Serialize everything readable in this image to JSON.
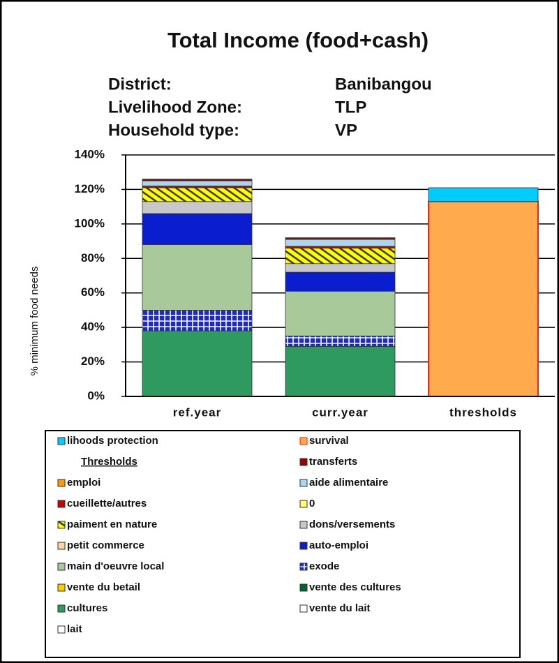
{
  "chart_data": {
    "type": "stacked_bar",
    "title": "Total Income (food+cash)",
    "info": [
      {
        "label": "District:",
        "value": "Banibangou"
      },
      {
        "label": "Livelihood Zone:",
        "value": "TLP"
      },
      {
        "label": "Household type:",
        "value": "VP"
      }
    ],
    "y_label": "% minimum food needs",
    "categories": [
      "ref.year",
      "curr.year",
      "thresholds"
    ],
    "ylim": [
      0,
      140
    ],
    "yticks": [
      {
        "value": 0,
        "label": "0%"
      },
      {
        "value": 20,
        "label": "20%"
      },
      {
        "value": 40,
        "label": "40%"
      },
      {
        "value": 60,
        "label": "60%"
      },
      {
        "value": 80,
        "label": "80%"
      },
      {
        "value": 100,
        "label": "100%"
      },
      {
        "value": 120,
        "label": "120%"
      },
      {
        "value": 140,
        "label": "140%"
      }
    ],
    "grid": true,
    "series": [
      {
        "name": "lait",
        "color": "#ffffff",
        "values": [
          0,
          0,
          0
        ]
      },
      {
        "name": "vente du lait",
        "color": "#ffffff",
        "values": [
          0,
          0,
          0
        ]
      },
      {
        "name": "cultures",
        "color": "#2e9a5f",
        "values": [
          38,
          29,
          0
        ]
      },
      {
        "name": "vente des cultures",
        "color": "#006633",
        "values": [
          0,
          0,
          0
        ]
      },
      {
        "name": "vente du betail",
        "color": "#ffcc00",
        "values": [
          0,
          0,
          0
        ]
      },
      {
        "name": "exode",
        "color": "#1a2ad0",
        "pattern": "checker",
        "values": [
          12,
          6,
          0
        ]
      },
      {
        "name": "main d'oeuvre local",
        "color": "#a8c99a",
        "values": [
          38,
          26,
          0
        ]
      },
      {
        "name": "auto-emploi",
        "color": "#0a1ed0",
        "values": [
          18,
          11,
          0
        ]
      },
      {
        "name": "petit commerce",
        "color": "#fdd7a0",
        "values": [
          0,
          0,
          0
        ]
      },
      {
        "name": "dons/versements",
        "color": "#c8c8c8",
        "values": [
          7,
          5,
          0
        ]
      },
      {
        "name": "paiment en nature",
        "color": "#ffff00",
        "pattern": "hatch",
        "values": [
          8,
          9,
          0
        ]
      },
      {
        "name": "0",
        "color": "#ffff66",
        "values": [
          0,
          0,
          0
        ]
      },
      {
        "name": "cueillette/autres",
        "color": "#cc0000",
        "values": [
          1,
          1,
          0
        ]
      },
      {
        "name": "aide alimentaire",
        "color": "#a6d8f0",
        "values": [
          3,
          4,
          0
        ]
      },
      {
        "name": "emploi",
        "color": "#ff9900",
        "values": [
          0,
          0,
          0
        ]
      },
      {
        "name": "transferts",
        "color": "#990000",
        "values": [
          1,
          1,
          0
        ]
      },
      {
        "name": "Thresholds",
        "color": "none",
        "values": [
          0,
          0,
          0
        ]
      },
      {
        "name": "survival",
        "color": "#ffaa4c",
        "border": "#ff2200",
        "values": [
          0,
          0,
          113
        ]
      },
      {
        "name": "lihoods protection",
        "color": "#00ccff",
        "values": [
          0,
          0,
          8
        ]
      }
    ]
  }
}
